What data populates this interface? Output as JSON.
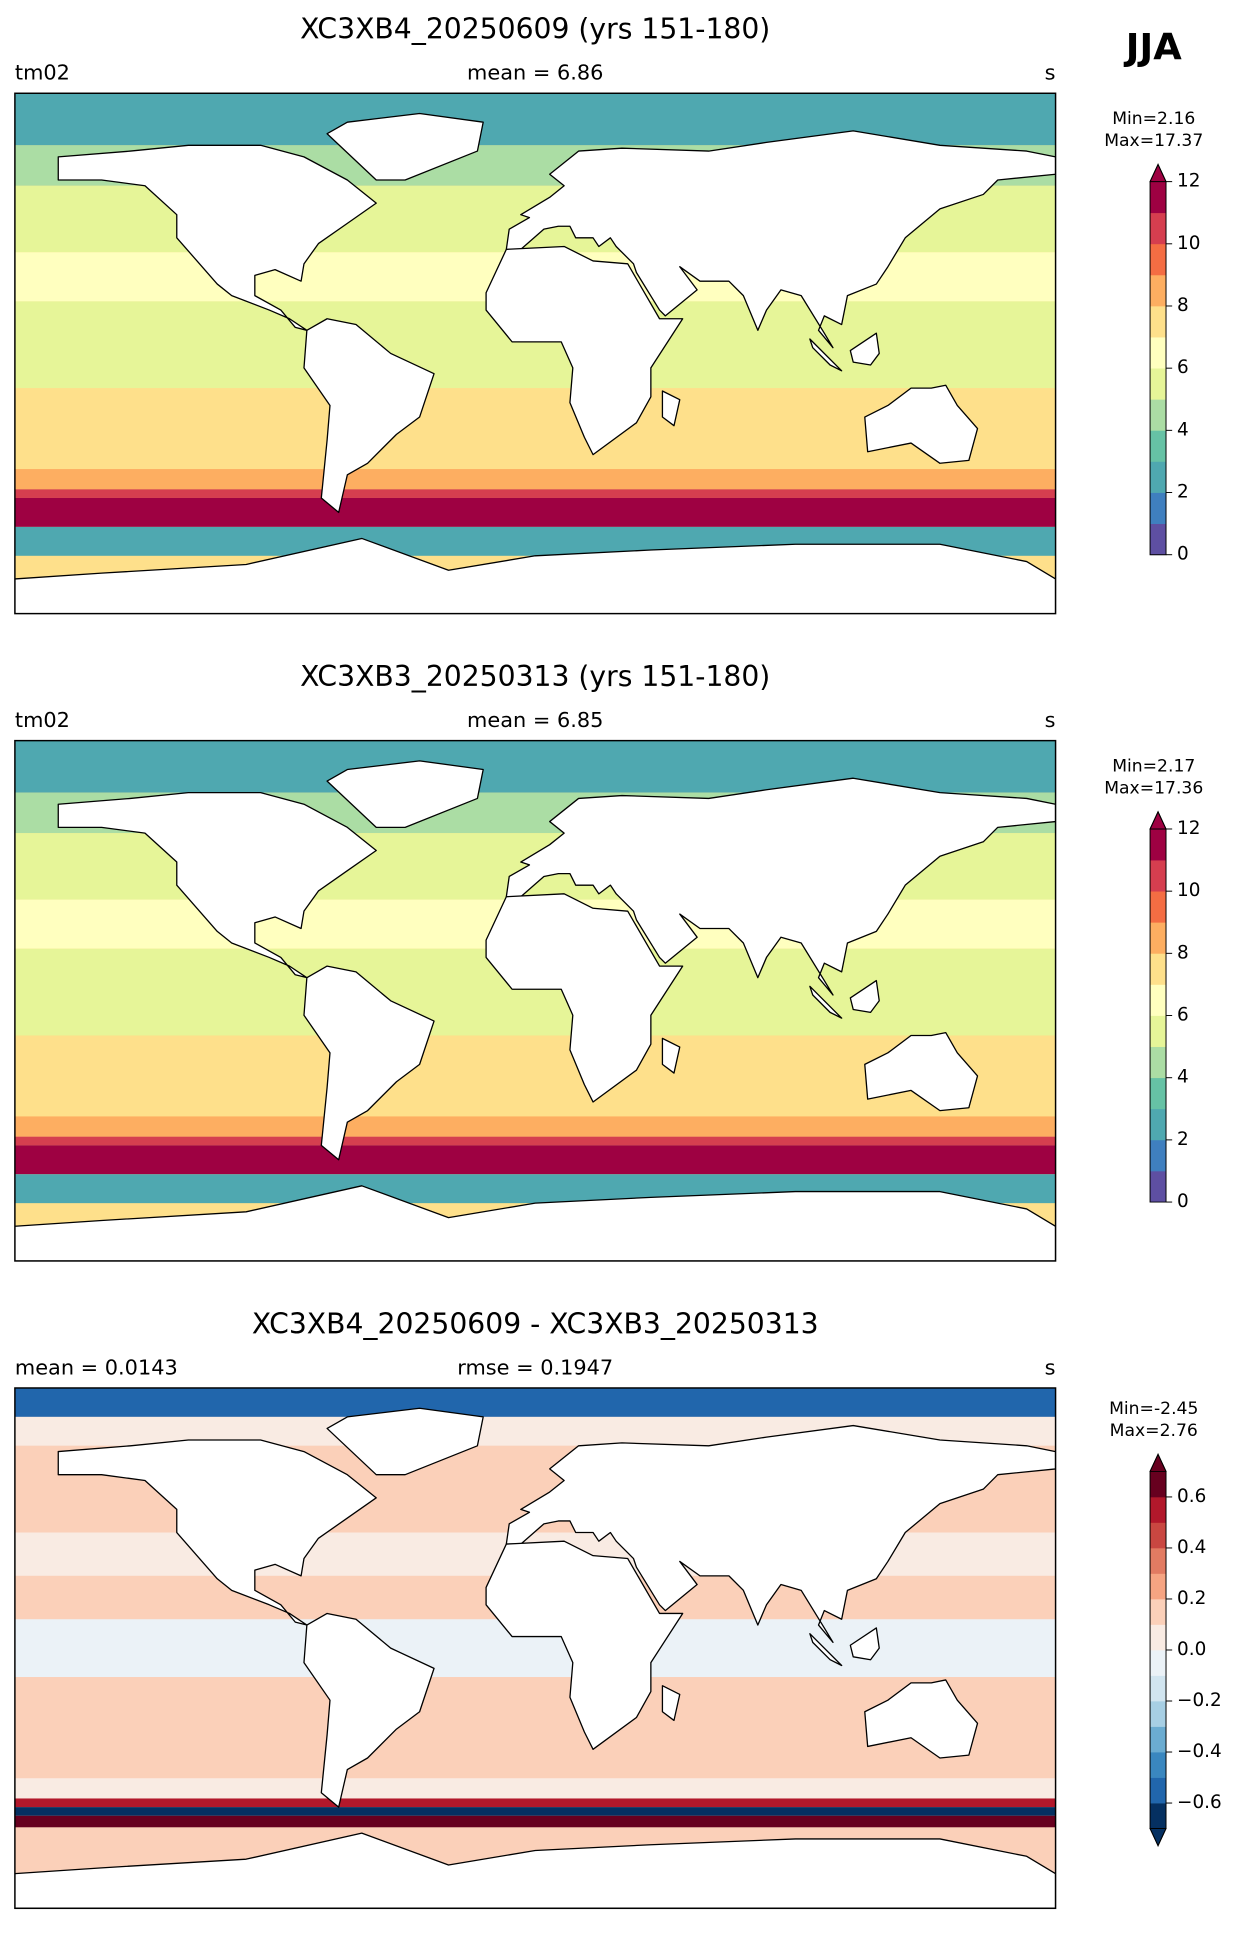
{
  "corner_label": "JJA",
  "panels": [
    {
      "title": "XC3XB4_20250609 (yrs 151-180)",
      "left_label": "tm02",
      "center_label": "mean = 6.86",
      "right_label": "s",
      "colorbar": {
        "min_label": "Min=2.16",
        "max_label": "Max=17.37",
        "lim": [
          0,
          12
        ],
        "ticks": [
          0,
          2,
          4,
          6,
          8,
          10,
          12
        ],
        "extend": "max",
        "colors": [
          "#5e4fa2",
          "#3f7fbf",
          "#4fa8b0",
          "#66c2a5",
          "#abdda4",
          "#e6f598",
          "#ffffbf",
          "#fee08b",
          "#fdae61",
          "#f46d43",
          "#d53e4f",
          "#9e0142"
        ]
      }
    },
    {
      "title": "XC3XB3_20250313 (yrs 151-180)",
      "left_label": "tm02",
      "center_label": "mean = 6.85",
      "right_label": "s",
      "colorbar": {
        "min_label": "Min=2.17",
        "max_label": "Max=17.36",
        "lim": [
          0,
          12
        ],
        "ticks": [
          0,
          2,
          4,
          6,
          8,
          10,
          12
        ],
        "extend": "max",
        "colors": [
          "#5e4fa2",
          "#3f7fbf",
          "#4fa8b0",
          "#66c2a5",
          "#abdda4",
          "#e6f598",
          "#ffffbf",
          "#fee08b",
          "#fdae61",
          "#f46d43",
          "#d53e4f",
          "#9e0142"
        ]
      }
    },
    {
      "title": "XC3XB4_20250609 - XC3XB3_20250313",
      "left_label": "mean = 0.0143",
      "center_label": "rmse = 0.1947",
      "right_label": "s",
      "colorbar": {
        "min_label": "Min=-2.45",
        "max_label": "Max=2.76",
        "lim": [
          -0.7,
          0.7
        ],
        "ticks": [
          {
            "value": -0.6,
            "label": "−0.6"
          },
          {
            "value": -0.4,
            "label": "−0.4"
          },
          {
            "value": -0.2,
            "label": "−0.2"
          },
          {
            "value": 0,
            "label": "0.0"
          },
          {
            "value": 0.2,
            "label": "0.2"
          },
          {
            "value": 0.4,
            "label": "0.4"
          },
          {
            "value": 0.6,
            "label": "0.6"
          }
        ],
        "extend": "both",
        "colors": [
          "#053061",
          "#2166ac",
          "#3a87bf",
          "#6bacd1",
          "#a7cfe4",
          "#d1e5f0",
          "#ebf2f7",
          "#f9ebe3",
          "#fbd0b9",
          "#f6a482",
          "#e27b62",
          "#c94741",
          "#b2182b",
          "#67001f"
        ]
      }
    }
  ]
}
